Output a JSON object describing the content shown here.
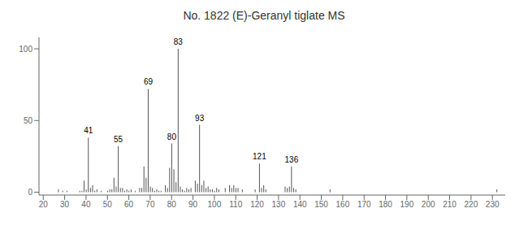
{
  "chart_data": {
    "type": "bar",
    "title": "No. 1822 (E)-Geranyl tiglate MS",
    "x": [
      27,
      29,
      31,
      37,
      38,
      39,
      40,
      41,
      42,
      43,
      44,
      45,
      47,
      50,
      51,
      52,
      53,
      54,
      55,
      56,
      57,
      58,
      59,
      60,
      61,
      63,
      65,
      66,
      67,
      68,
      69,
      70,
      71,
      72,
      73,
      74,
      75,
      77,
      78,
      79,
      80,
      81,
      82,
      83,
      84,
      85,
      86,
      87,
      88,
      89,
      91,
      92,
      93,
      94,
      95,
      96,
      97,
      98,
      99,
      100,
      101,
      102,
      105,
      107,
      108,
      109,
      110,
      111,
      113,
      119,
      121,
      122,
      123,
      124,
      133,
      134,
      135,
      136,
      137,
      138,
      154,
      232
    ],
    "values": [
      2,
      1,
      1,
      1,
      1,
      8,
      2,
      38,
      3,
      5,
      1,
      2,
      1,
      1,
      2,
      2,
      10,
      4,
      32,
      3,
      3,
      1,
      2,
      1,
      2,
      1,
      3,
      3,
      18,
      10,
      72,
      4,
      3,
      1,
      2,
      1,
      1,
      5,
      3,
      17,
      34,
      16,
      7,
      100,
      4,
      2,
      1,
      3,
      2,
      3,
      8,
      6,
      47,
      5,
      8,
      3,
      4,
      2,
      2,
      1,
      3,
      2,
      3,
      5,
      3,
      5,
      3,
      3,
      2,
      2,
      20,
      3,
      5,
      2,
      4,
      3,
      4,
      18,
      3,
      2,
      2,
      2
    ],
    "color": "#555555",
    "xlim": [
      18,
      236
    ],
    "xticks": [
      20,
      30,
      40,
      50,
      60,
      70,
      80,
      90,
      100,
      110,
      120,
      130,
      140,
      150,
      160,
      170,
      180,
      190,
      200,
      210,
      220,
      230
    ],
    "ylim": [
      -2,
      108
    ],
    "yticks": [
      0,
      50,
      100
    ],
    "grid": false,
    "annotations": [
      {
        "x": 41,
        "text": "41"
      },
      {
        "x": 55,
        "text": "55"
      },
      {
        "x": 69,
        "text": "69"
      },
      {
        "x": 80,
        "text": "80"
      },
      {
        "x": 83,
        "text": "83"
      },
      {
        "x": 93,
        "text": "93"
      },
      {
        "x": 121,
        "text": "121"
      },
      {
        "x": 136,
        "text": "136"
      }
    ]
  }
}
